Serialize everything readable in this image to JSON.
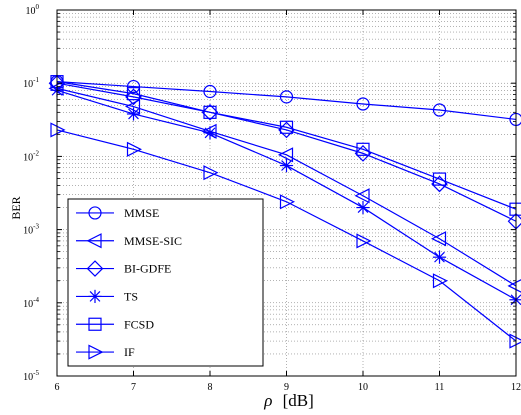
{
  "chart_data": {
    "type": "line",
    "title": "",
    "xlabel": "ρ [dB]",
    "xlabel_symbol": "ρ",
    "xlabel_unit": "[dB]",
    "ylabel": "BER",
    "x": [
      6,
      7,
      8,
      9,
      10,
      11,
      12
    ],
    "xlim": [
      6,
      12
    ],
    "ylim": [
      1e-05,
      1
    ],
    "yscale": "log",
    "grid": true,
    "legend_position": "bottom-left",
    "color": "#0000ff",
    "x_ticks": [
      "6",
      "7",
      "8",
      "9",
      "10",
      "11",
      "12"
    ],
    "y_ticks": [
      {
        "base": "10",
        "exp": "0",
        "value": 1
      },
      {
        "base": "10",
        "exp": "-1",
        "value": 0.1
      },
      {
        "base": "10",
        "exp": "-2",
        "value": 0.01
      },
      {
        "base": "10",
        "exp": "-3",
        "value": 0.001
      },
      {
        "base": "10",
        "exp": "-4",
        "value": 0.0001
      },
      {
        "base": "10",
        "exp": "-5",
        "value": 1e-05
      }
    ],
    "series": [
      {
        "name": "MMSE",
        "marker": "circle",
        "values": [
          0.105,
          0.09,
          0.077,
          0.065,
          0.052,
          0.043,
          0.032
        ]
      },
      {
        "name": "MMSE-SIC",
        "marker": "triangle-left",
        "values": [
          0.085,
          0.048,
          0.022,
          0.0105,
          0.0029,
          0.00075,
          0.00017
        ]
      },
      {
        "name": "BI-GDFE",
        "marker": "diamond",
        "values": [
          0.1,
          0.065,
          0.04,
          0.023,
          0.011,
          0.0042,
          0.0013
        ]
      },
      {
        "name": "TS",
        "marker": "asterisk",
        "values": [
          0.08,
          0.038,
          0.021,
          0.0075,
          0.002,
          0.00042,
          0.00011
        ]
      },
      {
        "name": "FCSD",
        "marker": "square",
        "values": [
          0.105,
          0.072,
          0.04,
          0.025,
          0.0125,
          0.0049,
          0.0019
        ]
      },
      {
        "name": "IF",
        "marker": "triangle-right",
        "values": [
          0.023,
          0.0125,
          0.006,
          0.0024,
          0.0007,
          0.0002,
          3e-05
        ]
      }
    ]
  }
}
